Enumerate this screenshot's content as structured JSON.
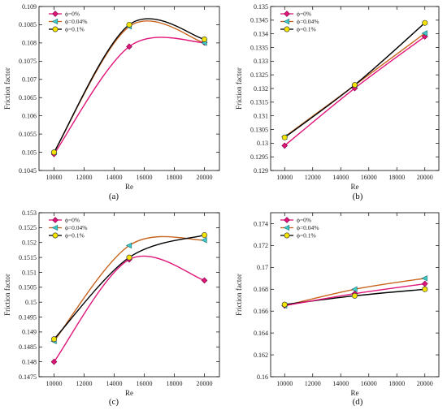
{
  "chart_data": [
    {
      "panel": "(a)",
      "type": "line",
      "xlabel": "Re",
      "ylabel": "Friction factor",
      "x": [
        10000,
        15000,
        20000
      ],
      "xlim": [
        9000,
        21000
      ],
      "ylim": [
        0.1045,
        0.109
      ],
      "xticks": [
        10000,
        12000,
        14000,
        16000,
        18000,
        20000
      ],
      "xtick_labels": [
        "10000",
        "12000",
        "14000",
        "16000",
        "18000",
        "20000"
      ],
      "yticks": [
        0.1045,
        0.105,
        0.1055,
        0.106,
        0.1065,
        0.107,
        0.1075,
        0.108,
        0.1085,
        0.109
      ],
      "ytick_labels": [
        "0.1045",
        "0.105",
        "0.1055",
        "0.106",
        "0.1065",
        "0.107",
        "0.1075",
        "0.108",
        "0.1085",
        "0.109"
      ],
      "legend_position": "top-left",
      "series": [
        {
          "name": "ϕ=0%",
          "color": "#e0157a",
          "marker": "diamond",
          "values": [
            0.10495,
            0.1079,
            0.10801
          ]
        },
        {
          "name": "ϕ=0.04%",
          "color": "#c8641e",
          "marker": "triangle",
          "values": [
            0.105,
            0.10845,
            0.108
          ]
        },
        {
          "name": "ϕ=0.1%",
          "color": "#000000",
          "marker": "circle",
          "values": [
            0.105,
            0.1085,
            0.1081
          ]
        }
      ]
    },
    {
      "panel": "(b)",
      "type": "line",
      "xlabel": "Re",
      "ylabel": "Friction factor",
      "x": [
        10000,
        15000,
        20000
      ],
      "xlim": [
        9000,
        21000
      ],
      "ylim": [
        0.129,
        0.135
      ],
      "xticks": [
        10000,
        12000,
        14000,
        16000,
        18000,
        20000
      ],
      "xtick_labels": [
        "10000",
        "12000",
        "14000",
        "16000",
        "18000",
        "20000"
      ],
      "yticks": [
        0.129,
        0.1295,
        0.13,
        0.1305,
        0.131,
        0.1315,
        0.132,
        0.1325,
        0.133,
        0.1335,
        0.134,
        0.1345,
        0.135
      ],
      "ytick_labels": [
        "0.129",
        "0.1295",
        "0.13",
        "0.1305",
        "0.131",
        "0.1315",
        "0.132",
        "0.1325",
        "0.133",
        "0.1335",
        "0.134",
        "0.1345",
        "0.135"
      ],
      "legend_position": "top-left",
      "series": [
        {
          "name": "ϕ=0%",
          "color": "#e0157a",
          "marker": "diamond",
          "values": [
            0.12991,
            0.13201,
            0.1339
          ]
        },
        {
          "name": "ϕ=0.04%",
          "color": "#c8641e",
          "marker": "triangle",
          "values": [
            0.13023,
            0.13212,
            0.13402
          ]
        },
        {
          "name": "ϕ=0.1%",
          "color": "#000000",
          "marker": "circle",
          "values": [
            0.13021,
            0.13213,
            0.1344
          ]
        }
      ]
    },
    {
      "panel": "(c)",
      "type": "line",
      "xlabel": "Re",
      "ylabel": "Friction factor",
      "x": [
        10000,
        15000,
        20000
      ],
      "xlim": [
        9000,
        21000
      ],
      "ylim": [
        0.1475,
        0.153
      ],
      "xticks": [
        10000,
        12000,
        14000,
        16000,
        18000,
        20000
      ],
      "xtick_labels": [
        "10000",
        "12000",
        "14000",
        "16000",
        "18000",
        "20000"
      ],
      "yticks": [
        0.1475,
        0.148,
        0.1485,
        0.149,
        0.1495,
        0.15,
        0.1505,
        0.151,
        0.1515,
        0.152,
        0.1525,
        0.153
      ],
      "ytick_labels": [
        "0.1475",
        "0.148",
        "0.1485",
        "0.149",
        "0.1495",
        "0.15",
        "0.1505",
        "0.151",
        "0.1515",
        "0.152",
        "0.1525",
        "0.153"
      ],
      "legend_position": "top-left",
      "series": [
        {
          "name": "ϕ=0%",
          "color": "#e0157a",
          "marker": "diamond",
          "values": [
            0.148,
            0.15143,
            0.15073
          ]
        },
        {
          "name": "ϕ=0.04%",
          "color": "#c8641e",
          "marker": "triangle",
          "values": [
            0.14869,
            0.1519,
            0.15208
          ]
        },
        {
          "name": "ϕ=0.1%",
          "color": "#000000",
          "marker": "circle",
          "values": [
            0.14876,
            0.1515,
            0.15225
          ]
        }
      ]
    },
    {
      "panel": "(d)",
      "type": "line",
      "xlabel": "Re",
      "ylabel": "Friction factor",
      "x": [
        10000,
        15000,
        20000
      ],
      "xlim": [
        9000,
        21000
      ],
      "ylim": [
        0.16,
        0.175
      ],
      "xticks": [
        10000,
        12000,
        14000,
        16000,
        18000,
        20000
      ],
      "xtick_labels": [
        "10000",
        "12000",
        "14000",
        "16000",
        "18000",
        "20000"
      ],
      "yticks": [
        0.16,
        0.162,
        0.164,
        0.166,
        0.168,
        0.17,
        0.172,
        0.174
      ],
      "ytick_labels": [
        "0.16",
        "0.162",
        "0.164",
        "0.166",
        "0.168",
        "0.17",
        "0.172",
        "0.174"
      ],
      "legend_position": "top-left",
      "series": [
        {
          "name": "ϕ=0%",
          "color": "#e0157a",
          "marker": "diamond",
          "values": [
            0.1665,
            0.1676,
            0.1685
          ]
        },
        {
          "name": "ϕ=0.04%",
          "color": "#c8641e",
          "marker": "triangle",
          "values": [
            0.1665,
            0.168,
            0.169
          ]
        },
        {
          "name": "ϕ=0.1%",
          "color": "#000000",
          "marker": "circle",
          "values": [
            0.1666,
            0.1674,
            0.168
          ]
        }
      ]
    }
  ]
}
